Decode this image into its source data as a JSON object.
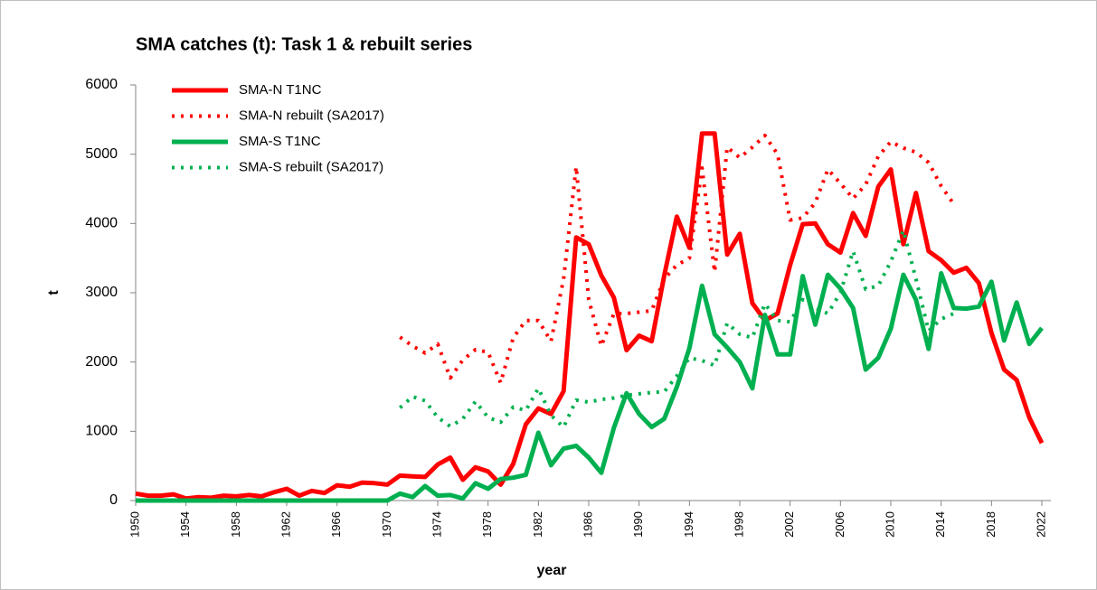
{
  "chart_data": {
    "type": "line",
    "title": "SMA catches (t): Task 1 & rebuilt series",
    "x_label": "year",
    "y_label": "t",
    "x": [
      1950,
      1951,
      1952,
      1953,
      1954,
      1955,
      1956,
      1957,
      1958,
      1959,
      1960,
      1961,
      1962,
      1963,
      1964,
      1965,
      1966,
      1967,
      1968,
      1969,
      1970,
      1971,
      1972,
      1973,
      1974,
      1975,
      1976,
      1977,
      1978,
      1979,
      1980,
      1981,
      1982,
      1983,
      1984,
      1985,
      1986,
      1987,
      1988,
      1989,
      1990,
      1991,
      1992,
      1993,
      1994,
      1995,
      1996,
      1997,
      1998,
      1999,
      2000,
      2001,
      2002,
      2003,
      2004,
      2005,
      2006,
      2007,
      2008,
      2009,
      2010,
      2011,
      2012,
      2013,
      2014,
      2015,
      2016,
      2017,
      2018,
      2019,
      2020,
      2021,
      2022
    ],
    "xlim": [
      1950,
      2022
    ],
    "xticks": [
      1950,
      1954,
      1958,
      1962,
      1966,
      1970,
      1974,
      1978,
      1982,
      1986,
      1990,
      1994,
      1998,
      2002,
      2006,
      2010,
      2014,
      2018,
      2022
    ],
    "ylim": [
      0,
      6000
    ],
    "yticks": [
      0,
      1000,
      2000,
      3000,
      4000,
      5000,
      6000
    ],
    "grid": false,
    "legend": "top-left",
    "series": [
      {
        "name": "SMA-N T1NC",
        "color": "#ff0000",
        "style": "solid",
        "values": [
          100,
          70,
          70,
          90,
          30,
          50,
          40,
          70,
          60,
          80,
          60,
          120,
          170,
          70,
          140,
          110,
          220,
          200,
          260,
          250,
          230,
          360,
          350,
          340,
          520,
          620,
          300,
          480,
          420,
          230,
          530,
          1100,
          1330,
          1250,
          1580,
          3800,
          3700,
          3250,
          2930,
          2170,
          2380,
          2300,
          3250,
          4100,
          3650,
          5300,
          5300,
          3550,
          3850,
          2850,
          2600,
          2700,
          3400,
          3990,
          4000,
          3700,
          3580,
          4150,
          3820,
          4530,
          4780,
          3700,
          4440,
          3600,
          3470,
          3290,
          3360,
          3140,
          2420,
          1890,
          1740,
          1200,
          830
        ]
      },
      {
        "name": "SMA-N rebuilt (SA2017)",
        "color": "#ff0000",
        "style": "dotted",
        "values": [
          null,
          null,
          null,
          null,
          null,
          null,
          null,
          null,
          null,
          null,
          null,
          null,
          null,
          null,
          null,
          null,
          null,
          null,
          null,
          null,
          null,
          2360,
          2230,
          2130,
          2260,
          1770,
          2030,
          2180,
          2140,
          1700,
          2350,
          2600,
          2600,
          2300,
          3200,
          4820,
          2900,
          2230,
          2700,
          2700,
          2720,
          2740,
          3200,
          3400,
          3500,
          4800,
          3300,
          5100,
          4950,
          5100,
          5270,
          5000,
          4050,
          4080,
          4300,
          4780,
          4580,
          4360,
          4560,
          4970,
          5180,
          5090,
          5030,
          4880,
          4540,
          4280,
          null,
          null,
          null,
          null,
          null,
          null,
          null
        ]
      },
      {
        "name": "SMA-S T1NC",
        "color": "#00b050",
        "style": "solid",
        "values": [
          0,
          0,
          0,
          0,
          0,
          0,
          0,
          0,
          0,
          0,
          0,
          0,
          0,
          0,
          0,
          0,
          0,
          0,
          0,
          0,
          0,
          100,
          50,
          210,
          70,
          80,
          30,
          250,
          170,
          310,
          330,
          370,
          980,
          510,
          750,
          790,
          620,
          400,
          1050,
          1550,
          1250,
          1060,
          1180,
          1640,
          2200,
          3100,
          2400,
          2210,
          2000,
          1620,
          2680,
          2110,
          2110,
          3240,
          2540,
          3260,
          3060,
          2780,
          1890,
          2060,
          2480,
          3260,
          2900,
          2190,
          3280,
          2780,
          2770,
          2800,
          3160,
          2310,
          2860,
          2260,
          2490
        ]
      },
      {
        "name": "SMA-S rebuilt (SA2017)",
        "color": "#00b050",
        "style": "dotted",
        "values": [
          null,
          null,
          null,
          null,
          null,
          null,
          null,
          null,
          null,
          null,
          null,
          null,
          null,
          null,
          null,
          null,
          null,
          null,
          null,
          null,
          null,
          1340,
          1500,
          1440,
          1200,
          1070,
          1180,
          1430,
          1200,
          1130,
          1350,
          1300,
          1620,
          1230,
          1060,
          1450,
          1420,
          1460,
          1480,
          1520,
          1540,
          1560,
          1570,
          1800,
          2060,
          2020,
          1950,
          2560,
          2400,
          2350,
          2840,
          2600,
          2580,
          2900,
          2780,
          2700,
          3000,
          3600,
          3050,
          3100,
          3450,
          3900,
          3200,
          2450,
          2620,
          2700,
          null,
          null,
          null,
          null,
          null,
          null,
          null
        ]
      }
    ]
  }
}
